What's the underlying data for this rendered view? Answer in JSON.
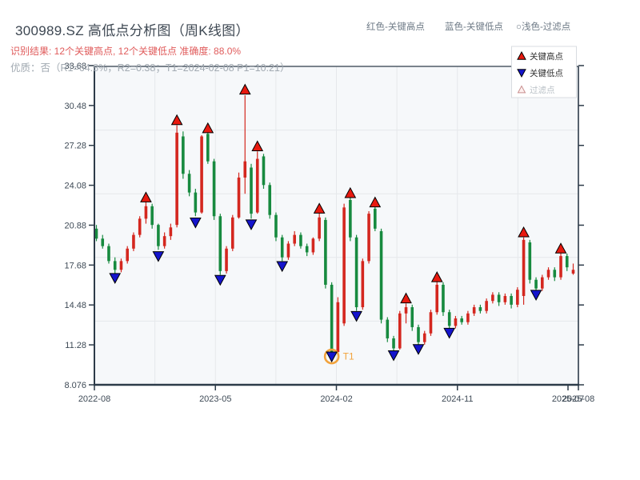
{
  "header": {
    "title": "300989.SZ 高低点分析图（周K线图）",
    "result_line": "识别结果: 12个关键高点, 12个关键低点  准确度: 88.0%",
    "quality_line": "优质：否（R1=64.8%，R2=0.38；T1=2024-02-08 P1=10.21）",
    "right_labels": [
      "红色-关键高点",
      "蓝色-关键低点",
      "○浅色-过滤点"
    ]
  },
  "chart_data": {
    "type": "candlestick",
    "symbol": "300989.SZ",
    "period": "weekly",
    "title": "300989.SZ 高低点分析图（周K线图）",
    "ylim": [
      8.076,
      33.68
    ],
    "y_ticks": [
      "33.68",
      "30.48",
      "27.28",
      "24.08",
      "20.88",
      "17.68",
      "14.48",
      "11.28",
      "8.076"
    ],
    "x_ticks": [
      "2022-08",
      "2023-05",
      "2024-02",
      "2024-11",
      "2025-08"
    ],
    "x_extra_tick": "2025-07",
    "grid": "on",
    "legend": [
      {
        "marker": "up",
        "label": "关键高点"
      },
      {
        "marker": "down",
        "label": "关键低点"
      },
      {
        "marker": "filtered",
        "label": "过滤点"
      }
    ],
    "candles_note": "each candle = [open, high, low, close], approx bi-weekly",
    "candles": [
      [
        20.6,
        20.9,
        19.6,
        19.8
      ],
      [
        19.8,
        20.1,
        19.0,
        19.2
      ],
      [
        19.2,
        19.4,
        17.8,
        18.0
      ],
      [
        18.0,
        18.3,
        17.0,
        17.3
      ],
      [
        17.3,
        18.2,
        17.1,
        18.0
      ],
      [
        18.0,
        19.2,
        17.8,
        19.0
      ],
      [
        19.0,
        20.3,
        18.8,
        20.1
      ],
      [
        20.1,
        21.6,
        19.9,
        21.4
      ],
      [
        21.4,
        22.9,
        21.0,
        22.4
      ],
      [
        22.4,
        22.6,
        20.6,
        20.9
      ],
      [
        20.9,
        21.0,
        18.9,
        19.2
      ],
      [
        19.2,
        20.3,
        19.0,
        20.0
      ],
      [
        20.0,
        21.0,
        19.7,
        20.7
      ],
      [
        20.9,
        28.9,
        20.7,
        28.3
      ],
      [
        28.0,
        28.4,
        24.6,
        25.0
      ],
      [
        25.0,
        25.3,
        23.2,
        23.5
      ],
      [
        23.5,
        23.8,
        21.6,
        21.9
      ],
      [
        21.9,
        28.1,
        21.8,
        28.0
      ],
      [
        28.2,
        28.4,
        25.8,
        26.0
      ],
      [
        26.0,
        26.2,
        21.3,
        21.6
      ],
      [
        21.6,
        21.8,
        16.9,
        17.2
      ],
      [
        17.2,
        19.2,
        17.0,
        19.0
      ],
      [
        19.0,
        21.7,
        18.8,
        21.5
      ],
      [
        21.5,
        25.1,
        21.4,
        24.7
      ],
      [
        24.7,
        31.3,
        23.4,
        26.0
      ],
      [
        25.5,
        25.8,
        21.4,
        21.8
      ],
      [
        21.9,
        26.8,
        21.8,
        26.2
      ],
      [
        26.4,
        26.6,
        23.8,
        24.1
      ],
      [
        24.1,
        24.3,
        21.4,
        21.7
      ],
      [
        21.7,
        21.9,
        19.6,
        19.9
      ],
      [
        19.9,
        20.1,
        18.0,
        18.3
      ],
      [
        18.3,
        19.6,
        18.1,
        19.4
      ],
      [
        19.4,
        20.4,
        19.2,
        20.1
      ],
      [
        20.1,
        20.3,
        19.0,
        19.2
      ],
      [
        19.2,
        19.4,
        18.4,
        18.7
      ],
      [
        18.7,
        19.9,
        18.5,
        19.8
      ],
      [
        19.8,
        21.9,
        19.6,
        21.5
      ],
      [
        21.3,
        21.5,
        15.8,
        16.1
      ],
      [
        16.1,
        16.3,
        10.2,
        10.7
      ],
      [
        10.7,
        15.1,
        10.5,
        14.7
      ],
      [
        13.0,
        22.6,
        12.8,
        22.3
      ],
      [
        22.9,
        23.4,
        19.6,
        19.9
      ],
      [
        19.9,
        20.1,
        14.0,
        14.3
      ],
      [
        14.3,
        18.2,
        14.1,
        18.0
      ],
      [
        18.0,
        22.0,
        17.8,
        21.8
      ],
      [
        22.2,
        22.4,
        20.4,
        20.6
      ],
      [
        20.4,
        20.6,
        13.0,
        13.3
      ],
      [
        13.3,
        13.5,
        11.5,
        11.8
      ],
      [
        11.8,
        12.0,
        10.7,
        11.0
      ],
      [
        11.0,
        14.0,
        10.9,
        13.8
      ],
      [
        13.8,
        14.6,
        13.0,
        14.3
      ],
      [
        14.3,
        14.5,
        12.4,
        12.7
      ],
      [
        12.7,
        12.9,
        11.2,
        11.5
      ],
      [
        11.5,
        12.4,
        11.3,
        12.2
      ],
      [
        12.2,
        14.1,
        12.0,
        13.9
      ],
      [
        13.9,
        16.4,
        13.7,
        16.1
      ],
      [
        16.1,
        16.3,
        13.6,
        13.9
      ],
      [
        13.9,
        14.1,
        12.5,
        12.8
      ],
      [
        12.8,
        13.6,
        12.6,
        13.4
      ],
      [
        13.4,
        13.6,
        12.9,
        13.1
      ],
      [
        13.1,
        14.0,
        12.9,
        13.8
      ],
      [
        13.8,
        14.5,
        13.6,
        14.3
      ],
      [
        14.3,
        14.5,
        13.8,
        14.0
      ],
      [
        14.0,
        15.0,
        13.8,
        14.8
      ],
      [
        14.8,
        15.5,
        14.6,
        15.3
      ],
      [
        15.3,
        15.5,
        14.4,
        14.7
      ],
      [
        14.7,
        15.4,
        14.5,
        15.2
      ],
      [
        15.2,
        15.4,
        14.2,
        14.5
      ],
      [
        14.5,
        15.9,
        14.3,
        15.7
      ],
      [
        15.2,
        19.9,
        14.5,
        19.7
      ],
      [
        19.5,
        19.7,
        16.2,
        16.5
      ],
      [
        16.5,
        16.7,
        15.5,
        15.8
      ],
      [
        15.8,
        16.9,
        15.6,
        16.7
      ],
      [
        16.7,
        17.5,
        16.5,
        17.3
      ],
      [
        17.3,
        17.5,
        16.4,
        16.7
      ],
      [
        16.7,
        18.7,
        16.5,
        18.4
      ],
      [
        18.4,
        18.6,
        17.2,
        17.5
      ],
      [
        17.0,
        17.8,
        16.9,
        17.3
      ]
    ],
    "key_highs": [
      {
        "i": 8,
        "price": 23.1
      },
      {
        "i": 13,
        "price": 29.3
      },
      {
        "i": 18,
        "price": 28.65
      },
      {
        "i": 24,
        "price": 31.75
      },
      {
        "i": 26,
        "price": 27.2
      },
      {
        "i": 36,
        "price": 22.2
      },
      {
        "i": 41,
        "price": 23.45
      },
      {
        "i": 45,
        "price": 22.7
      },
      {
        "i": 50,
        "price": 15.0
      },
      {
        "i": 55,
        "price": 16.7
      },
      {
        "i": 69,
        "price": 20.3
      },
      {
        "i": 75,
        "price": 19.0
      }
    ],
    "key_lows": [
      {
        "i": 3,
        "price": 16.65
      },
      {
        "i": 10,
        "price": 18.4
      },
      {
        "i": 16,
        "price": 21.1
      },
      {
        "i": 20,
        "price": 16.5
      },
      {
        "i": 25,
        "price": 20.95
      },
      {
        "i": 30,
        "price": 17.6
      },
      {
        "i": 38,
        "price": 10.35
      },
      {
        "i": 42,
        "price": 13.6
      },
      {
        "i": 48,
        "price": 10.45
      },
      {
        "i": 52,
        "price": 10.95
      },
      {
        "i": 57,
        "price": 12.25
      },
      {
        "i": 71,
        "price": 15.3
      }
    ],
    "t1": {
      "i": 38,
      "price": 10.35,
      "label": "T1",
      "date": "2024-02-08",
      "value": 10.21
    },
    "colors": {
      "up": "#d4271f",
      "down": "#178a3f",
      "high_marker": "#e8190f",
      "low_marker": "#1414cc",
      "marker_edge": "#000000",
      "t1_accent": "#f2a33c",
      "plot_bg": "#f6f8fa",
      "grid": "#e5e8eb",
      "spine": "#2d3b49",
      "tick_text": "#3e4a56",
      "filtered_fill": "#fdf0ef",
      "filtered_edge": "#c98f8f",
      "legend_text": "#2f2f2f",
      "legend_muted": "#b9c0c6"
    }
  }
}
